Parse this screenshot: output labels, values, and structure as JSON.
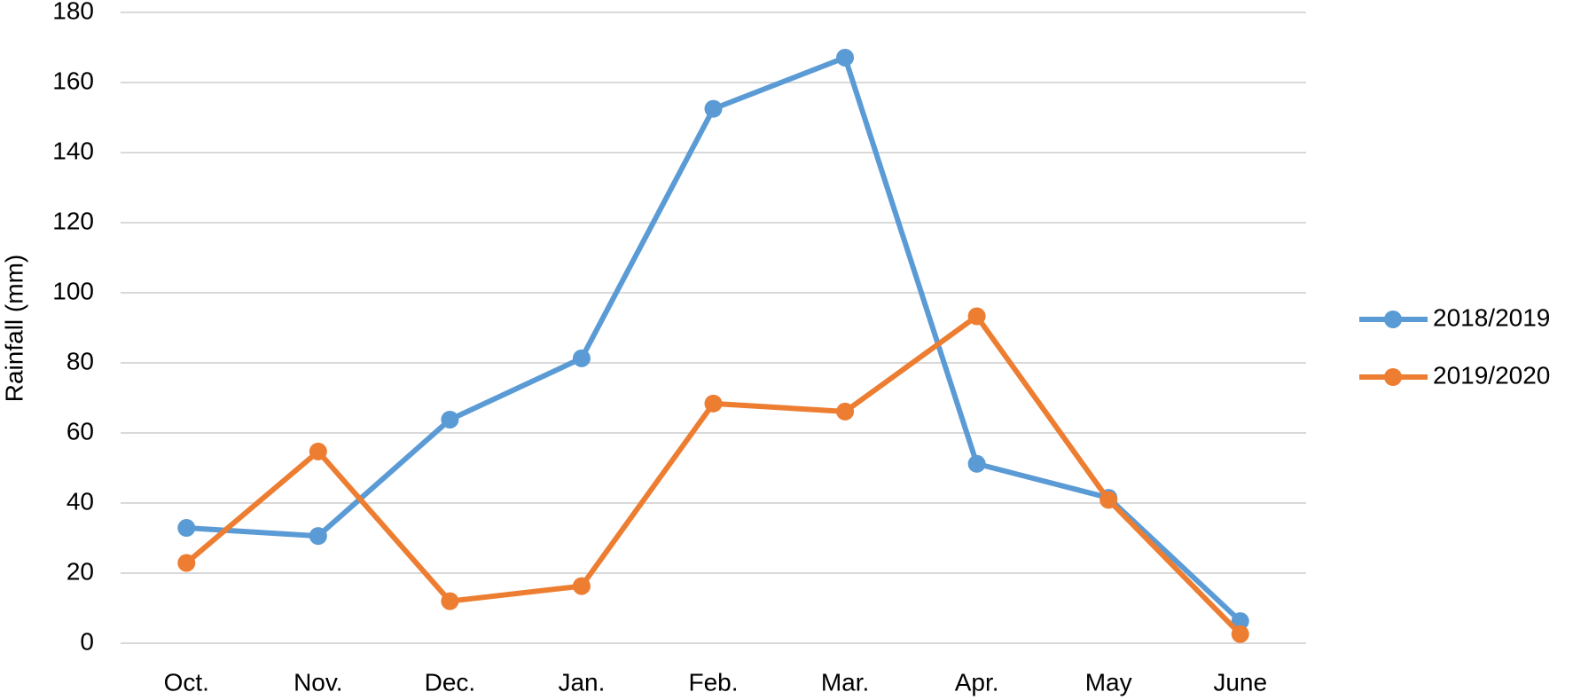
{
  "chart_data": {
    "type": "line",
    "y_label": "Rainfall (mm)",
    "categories": [
      "Oct.",
      "Nov.",
      "Dec.",
      "Jan.",
      "Feb.",
      "Mar.",
      "Apr.",
      "May",
      "June"
    ],
    "series": [
      {
        "name": "2018/2019",
        "color": "#5b9bd5",
        "values": [
          32.9,
          30.6,
          63.8,
          81.3,
          152.5,
          167.1,
          51.2,
          41.5,
          6.3
        ]
      },
      {
        "name": "2019/2020",
        "color": "#ed7d31",
        "values": [
          22.9,
          54.7,
          12,
          16.3,
          68.4,
          66.1,
          93.3,
          40.9,
          2.6
        ]
      }
    ],
    "ylim": [
      0,
      180
    ],
    "yticks": [
      0,
      20,
      40,
      60,
      80,
      100,
      120,
      140,
      160,
      180
    ],
    "grid": true,
    "legend": "right"
  }
}
